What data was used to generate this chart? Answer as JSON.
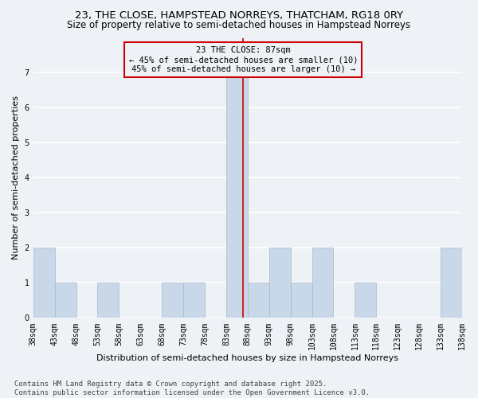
{
  "title1": "23, THE CLOSE, HAMPSTEAD NORREYS, THATCHAM, RG18 0RY",
  "title2": "Size of property relative to semi-detached houses in Hampstead Norreys",
  "xlabel": "Distribution of semi-detached houses by size in Hampstead Norreys",
  "ylabel": "Number of semi-detached properties",
  "footnote1": "Contains HM Land Registry data © Crown copyright and database right 2025.",
  "footnote2": "Contains public sector information licensed under the Open Government Licence v3.0.",
  "annotation_title": "23 THE CLOSE: 87sqm",
  "annotation_line1": "← 45% of semi-detached houses are smaller (10)",
  "annotation_line2": "45% of semi-detached houses are larger (10) →",
  "property_size": 87,
  "bin_edges": [
    38,
    43,
    48,
    53,
    58,
    63,
    68,
    73,
    78,
    83,
    88,
    93,
    98,
    103,
    108,
    113,
    118,
    123,
    128,
    133,
    138
  ],
  "bin_labels": [
    "38sqm",
    "43sqm",
    "48sqm",
    "53sqm",
    "58sqm",
    "63sqm",
    "68sqm",
    "73sqm",
    "78sqm",
    "83sqm",
    "88sqm",
    "93sqm",
    "98sqm",
    "103sqm",
    "108sqm",
    "113sqm",
    "118sqm",
    "123sqm",
    "128sqm",
    "133sqm",
    "138sqm"
  ],
  "counts": [
    2,
    1,
    0,
    1,
    0,
    0,
    1,
    1,
    0,
    7,
    1,
    2,
    1,
    2,
    0,
    1,
    0,
    0,
    0,
    2
  ],
  "bar_color": "#c8d8e8",
  "bar_edge_color": "#a8b8cc",
  "vline_color": "#cc0000",
  "vline_x": 87,
  "box_edge_color": "#cc0000",
  "ylim": [
    0,
    8
  ],
  "yticks": [
    0,
    1,
    2,
    3,
    4,
    5,
    6,
    7
  ],
  "background_color": "#eef2f7",
  "grid_color": "#ffffff",
  "title_fontsize": 9.5,
  "subtitle_fontsize": 8.5,
  "axis_label_fontsize": 8,
  "tick_fontsize": 7,
  "annotation_fontsize": 7.5,
  "footnote_fontsize": 6.5
}
